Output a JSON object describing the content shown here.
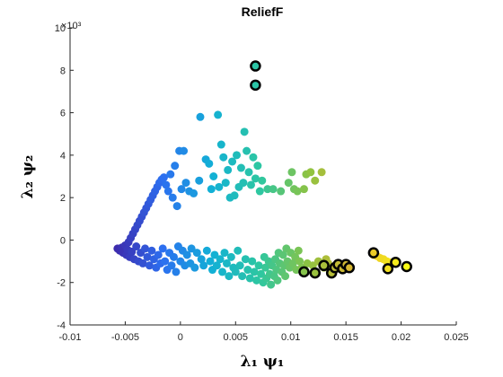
{
  "chart_data": {
    "type": "scatter",
    "title": "ReliefF",
    "xlabel": "λ₁ ψ₁",
    "ylabel": "λ₂ ψ₂",
    "x_ticks": [
      "-0.01",
      "-0.005",
      "0",
      "0.005",
      "0.01",
      "0.015",
      "0.02",
      "0.025"
    ],
    "y_ticks": [
      "-4",
      "-2",
      "0",
      "2",
      "4",
      "6",
      "8",
      "10"
    ],
    "y_exponent_label": "×10³",
    "xlim": [
      -0.01,
      0.025
    ],
    "ylim": [
      -4000,
      10000
    ],
    "grid": false,
    "color_scale": [
      "#3e26a8",
      "#2c6ff0",
      "#12b0d6",
      "#2ec7a0",
      "#8fc341",
      "#e6b52e",
      "#f9fb15"
    ],
    "highlighted": [
      {
        "x": 0.0068,
        "y": 8200
      },
      {
        "x": 0.0068,
        "y": 7300
      },
      {
        "x": 0.0112,
        "y": -1500
      },
      {
        "x": 0.0122,
        "y": -1550
      },
      {
        "x": 0.013,
        "y": -1200
      },
      {
        "x": 0.0137,
        "y": -1550
      },
      {
        "x": 0.014,
        "y": -1300
      },
      {
        "x": 0.0143,
        "y": -1150
      },
      {
        "x": 0.0147,
        "y": -1350
      },
      {
        "x": 0.015,
        "y": -1150
      },
      {
        "x": 0.0153,
        "y": -1300
      },
      {
        "x": 0.0175,
        "y": -600
      },
      {
        "x": 0.0188,
        "y": -1350
      },
      {
        "x": 0.0195,
        "y": -1050
      },
      {
        "x": 0.0205,
        "y": -1250
      }
    ],
    "points": [
      [
        -0.0057,
        -400
      ],
      [
        -0.0055,
        -500
      ],
      [
        -0.0053,
        -350
      ],
      [
        -0.0052,
        -600
      ],
      [
        -0.005,
        -250
      ],
      [
        -0.0049,
        -700
      ],
      [
        -0.0048,
        -450
      ],
      [
        -0.0047,
        -100
      ],
      [
        -0.0046,
        -800
      ],
      [
        -0.0045,
        100
      ],
      [
        -0.0044,
        -550
      ],
      [
        -0.0043,
        300
      ],
      [
        -0.0042,
        -900
      ],
      [
        -0.0041,
        500
      ],
      [
        -0.004,
        -300
      ],
      [
        -0.0039,
        700
      ],
      [
        -0.0038,
        -1000
      ],
      [
        -0.0037,
        900
      ],
      [
        -0.0036,
        -600
      ],
      [
        -0.0035,
        1100
      ],
      [
        -0.0034,
        -1100
      ],
      [
        -0.0033,
        1300
      ],
      [
        -0.0032,
        -400
      ],
      [
        -0.0031,
        1500
      ],
      [
        -0.003,
        -800
      ],
      [
        -0.0029,
        1700
      ],
      [
        -0.0028,
        -1200
      ],
      [
        -0.0027,
        1900
      ],
      [
        -0.0026,
        -500
      ],
      [
        -0.0025,
        2100
      ],
      [
        -0.0024,
        -900
      ],
      [
        -0.0023,
        2300
      ],
      [
        -0.0022,
        -1300
      ],
      [
        -0.0021,
        2500
      ],
      [
        -0.002,
        -700
      ],
      [
        -0.0019,
        2700
      ],
      [
        -0.0018,
        -1100
      ],
      [
        -0.0017,
        2850
      ],
      [
        -0.0016,
        -400
      ],
      [
        -0.0015,
        2950
      ],
      [
        -0.0014,
        -1000
      ],
      [
        -0.0013,
        2600
      ],
      [
        -0.0012,
        -1400
      ],
      [
        -0.0011,
        2300
      ],
      [
        -0.001,
        -600
      ],
      [
        -0.0009,
        3100
      ],
      [
        -0.0008,
        -1200
      ],
      [
        -0.0007,
        2000
      ],
      [
        -0.0006,
        -800
      ],
      [
        -0.0005,
        3500
      ],
      [
        -0.0004,
        -1500
      ],
      [
        -0.0003,
        1600
      ],
      [
        -0.0002,
        -300
      ],
      [
        -0.0001,
        4200
      ],
      [
        0.0,
        -1000
      ],
      [
        0.0001,
        2400
      ],
      [
        0.0002,
        -500
      ],
      [
        0.0003,
        4200
      ],
      [
        0.0004,
        -1200
      ],
      [
        0.0005,
        2700
      ],
      [
        0.0006,
        -700
      ],
      [
        0.0008,
        2300
      ],
      [
        0.0009,
        -1100
      ],
      [
        0.001,
        -400
      ],
      [
        0.0012,
        2200
      ],
      [
        0.0013,
        -1300
      ],
      [
        0.0015,
        -600
      ],
      [
        0.0017,
        2800
      ],
      [
        0.0018,
        5800
      ],
      [
        0.0019,
        -900
      ],
      [
        0.0021,
        -1200
      ],
      [
        0.0023,
        3800
      ],
      [
        0.0024,
        -500
      ],
      [
        0.0026,
        3600
      ],
      [
        0.0027,
        -1000
      ],
      [
        0.0028,
        2400
      ],
      [
        0.0029,
        -1400
      ],
      [
        0.003,
        3000
      ],
      [
        0.0031,
        -700
      ],
      [
        0.0033,
        -1200
      ],
      [
        0.0034,
        5900
      ],
      [
        0.0035,
        2500
      ],
      [
        0.0036,
        -900
      ],
      [
        0.0037,
        4500
      ],
      [
        0.0038,
        -1500
      ],
      [
        0.0039,
        3900
      ],
      [
        0.004,
        -600
      ],
      [
        0.0041,
        2700
      ],
      [
        0.0042,
        -1100
      ],
      [
        0.0043,
        3300
      ],
      [
        0.0044,
        -1700
      ],
      [
        0.0045,
        2000
      ],
      [
        0.0046,
        -800
      ],
      [
        0.0047,
        3700
      ],
      [
        0.0048,
        -1300
      ],
      [
        0.0049,
        2100
      ],
      [
        0.005,
        -1500
      ],
      [
        0.0051,
        4000
      ],
      [
        0.0052,
        -500
      ],
      [
        0.0053,
        2500
      ],
      [
        0.0054,
        -1200
      ],
      [
        0.0055,
        3400
      ],
      [
        0.0056,
        -1700
      ],
      [
        0.0057,
        2700
      ],
      [
        0.0058,
        5100
      ],
      [
        0.0059,
        -900
      ],
      [
        0.006,
        4200
      ],
      [
        0.0061,
        -1400
      ],
      [
        0.0062,
        3200
      ],
      [
        0.0063,
        -1800
      ],
      [
        0.0064,
        2600
      ],
      [
        0.0065,
        -1000
      ],
      [
        0.0066,
        3900
      ],
      [
        0.0067,
        -1500
      ],
      [
        0.0068,
        2900
      ],
      [
        0.0069,
        -1900
      ],
      [
        0.007,
        3500
      ],
      [
        0.0071,
        -1200
      ],
      [
        0.0072,
        2300
      ],
      [
        0.0073,
        -1600
      ],
      [
        0.0074,
        2800
      ],
      [
        0.0075,
        -2000
      ],
      [
        0.0076,
        -800
      ],
      [
        0.0077,
        -1300
      ],
      [
        0.0078,
        -1800
      ],
      [
        0.0079,
        2400
      ],
      [
        0.008,
        -1000
      ],
      [
        0.0081,
        -1600
      ],
      [
        0.0082,
        -2100
      ],
      [
        0.0083,
        -1200
      ],
      [
        0.0084,
        2400
      ],
      [
        0.0085,
        -1700
      ],
      [
        0.0086,
        -900
      ],
      [
        0.0087,
        -1400
      ],
      [
        0.0088,
        -1900
      ],
      [
        0.0089,
        -600
      ],
      [
        0.009,
        -1100
      ],
      [
        0.0091,
        2300
      ],
      [
        0.0092,
        -1500
      ],
      [
        0.0093,
        -700
      ],
      [
        0.0094,
        -1200
      ],
      [
        0.0095,
        -1700
      ],
      [
        0.0096,
        -400
      ],
      [
        0.0097,
        -1000
      ],
      [
        0.0098,
        2700
      ],
      [
        0.0099,
        -1300
      ],
      [
        0.01,
        -600
      ],
      [
        0.0101,
        3200
      ],
      [
        0.0102,
        -1100
      ],
      [
        0.0103,
        2400
      ],
      [
        0.0104,
        -800
      ],
      [
        0.0105,
        -1400
      ],
      [
        0.0106,
        2300
      ],
      [
        0.0107,
        -500
      ],
      [
        0.0108,
        -1000
      ],
      [
        0.011,
        -1300
      ],
      [
        0.0112,
        2400
      ],
      [
        0.0114,
        3100
      ],
      [
        0.0115,
        -1100
      ],
      [
        0.0118,
        3200
      ],
      [
        0.012,
        -1200
      ],
      [
        0.0122,
        2800
      ],
      [
        0.0125,
        -1000
      ],
      [
        0.0128,
        3200
      ],
      [
        0.013,
        -1300
      ],
      [
        0.0132,
        -900
      ],
      [
        0.0134,
        -1100
      ],
      [
        0.0175,
        -700
      ],
      [
        0.0178,
        -750
      ],
      [
        0.0181,
        -850
      ],
      [
        0.0184,
        -900
      ],
      [
        0.0187,
        -1000
      ],
      [
        0.019,
        -1050
      ]
    ]
  }
}
